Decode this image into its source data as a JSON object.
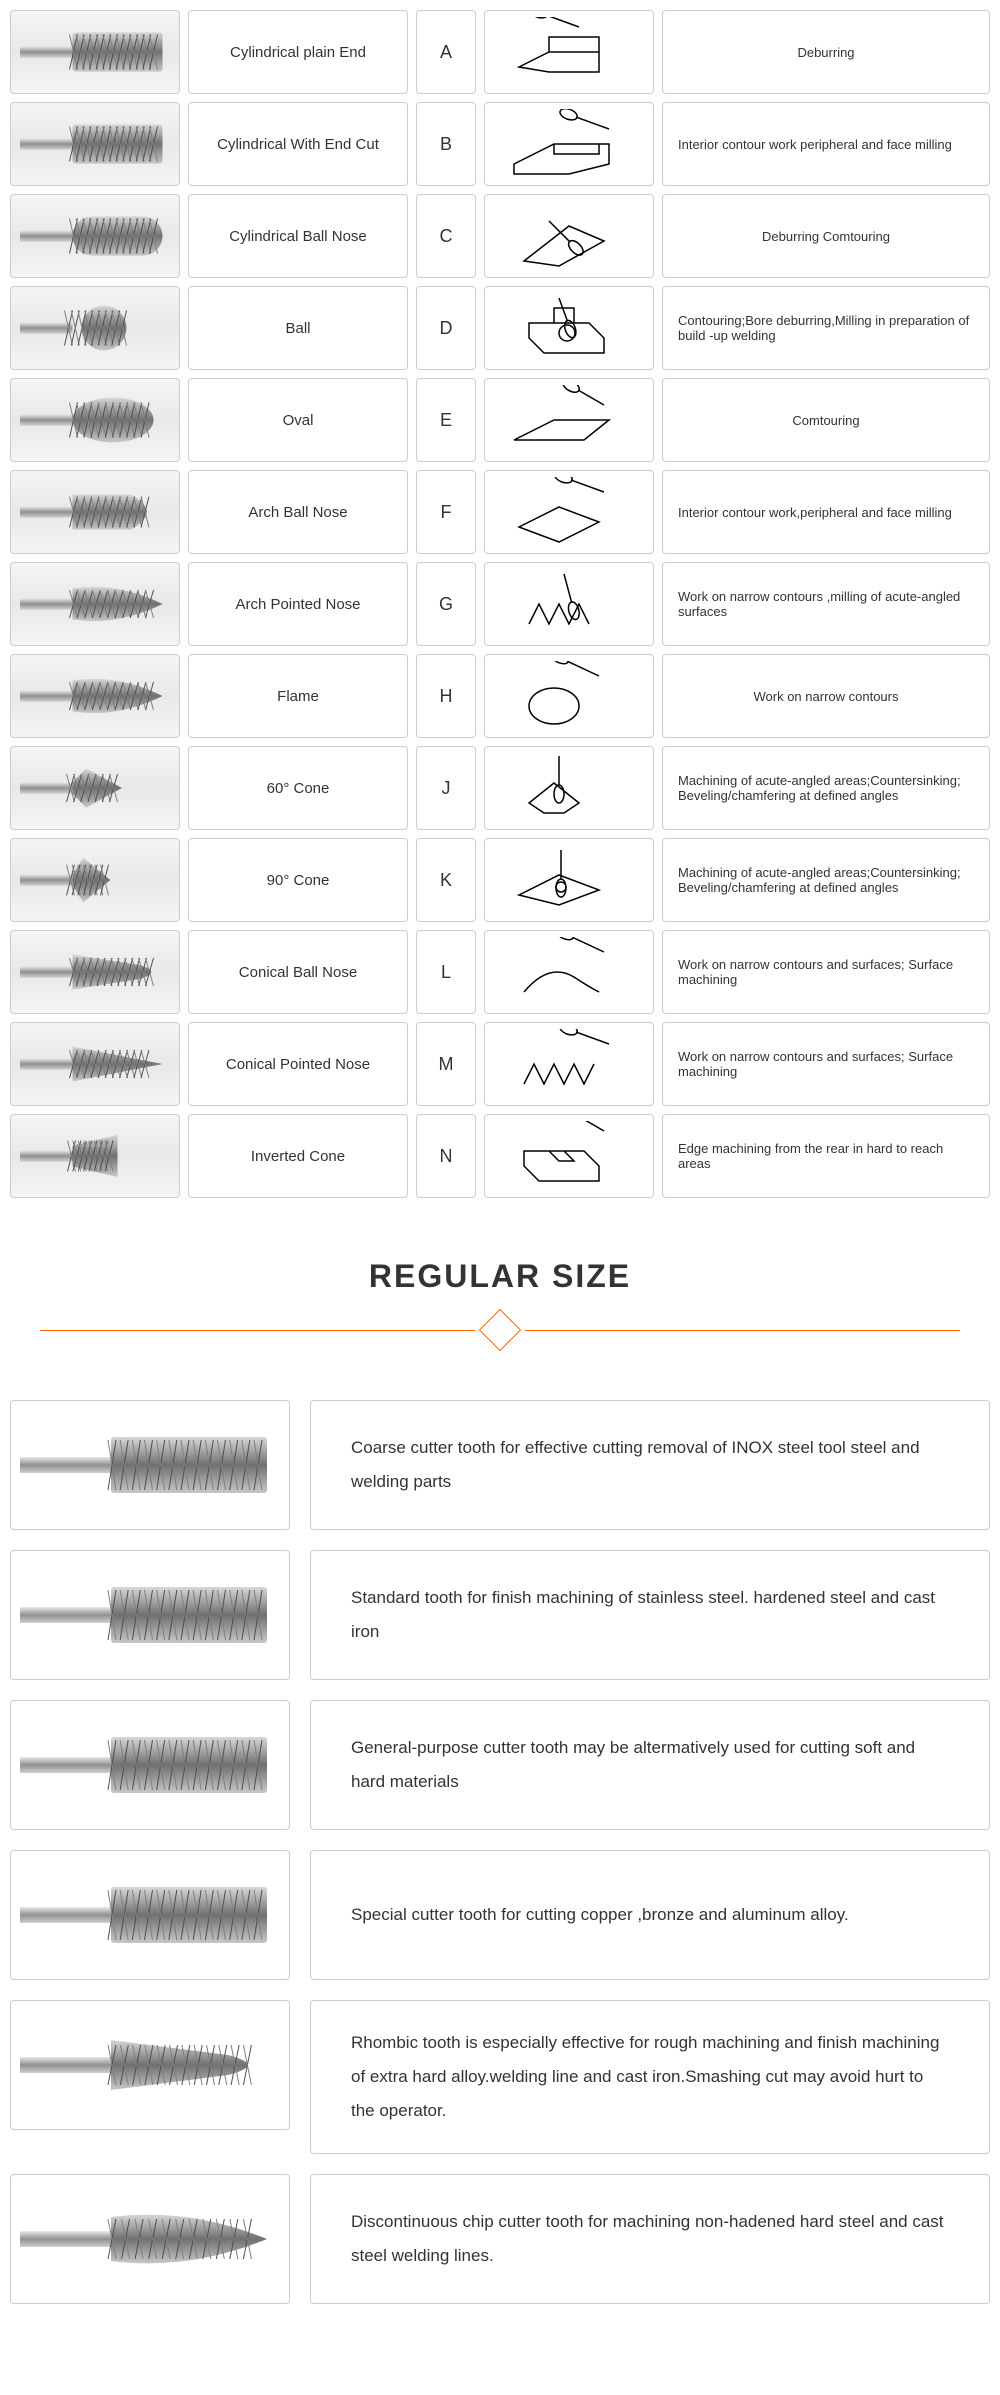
{
  "shapes": [
    {
      "name": "Cylindrical plain End",
      "code": "A",
      "desc": "Deburring",
      "descCenter": true,
      "shape": "cylinder"
    },
    {
      "name": "Cylindrical With End Cut",
      "code": "B",
      "desc": "Interior contour work peripheral and face milling",
      "descCenter": false,
      "shape": "cylinder"
    },
    {
      "name": "Cylindrical Ball Nose",
      "code": "C",
      "desc": "Deburring Comtouring",
      "descCenter": true,
      "shape": "cylinder-ball"
    },
    {
      "name": "Ball",
      "code": "D",
      "desc": "Contouring;Bore deburring,Milling in preparation of build -up welding",
      "descCenter": false,
      "shape": "ball"
    },
    {
      "name": "Oval",
      "code": "E",
      "desc": "Comtouring",
      "descCenter": true,
      "shape": "oval"
    },
    {
      "name": "Arch Ball Nose",
      "code": "F",
      "desc": "Interior contour work,peripheral and face milling",
      "descCenter": false,
      "shape": "arch"
    },
    {
      "name": "Arch Pointed Nose",
      "code": "G",
      "desc": "Work on narrow contours ,milling of acute-angled surfaces",
      "descCenter": false,
      "shape": "arch-point"
    },
    {
      "name": "Flame",
      "code": "H",
      "desc": "Work on narrow contours",
      "descCenter": true,
      "shape": "flame"
    },
    {
      "name": "60° Cone",
      "code": "J",
      "desc": "Machining of acute-angled areas;Countersinking; Beveling/chamfering at defined angles",
      "descCenter": false,
      "shape": "cone60"
    },
    {
      "name": "90° Cone",
      "code": "K",
      "desc": "Machining of acute-angled areas;Countersinking; Beveling/chamfering at defined angles",
      "descCenter": false,
      "shape": "cone90"
    },
    {
      "name": "Conical Ball Nose",
      "code": "L",
      "desc": "Work on narrow contours and surfaces; Surface machining",
      "descCenter": false,
      "shape": "conical-ball"
    },
    {
      "name": "Conical Pointed Nose",
      "code": "M",
      "desc": "Work on narrow contours and surfaces; Surface machining",
      "descCenter": false,
      "shape": "conical-point"
    },
    {
      "name": "Inverted Cone",
      "code": "N",
      "desc": "Edge machining from the rear in hard to reach areas",
      "descCenter": false,
      "shape": "inverted"
    }
  ],
  "sectionTitle": "REGULAR SIZE",
  "regular": [
    {
      "desc": "Coarse cutter tooth for effective cutting removal of INOX steel tool steel and welding parts",
      "shape": "cylinder"
    },
    {
      "desc": "Standard tooth for finish machining of stainless steel. hardened steel and cast iron",
      "shape": "cylinder"
    },
    {
      "desc": "General-purpose cutter tooth may be altermatively used for cutting soft and hard materials",
      "shape": "cylinder"
    },
    {
      "desc": "Special cutter tooth for cutting copper ,bronze and aluminum alloy.",
      "shape": "cylinder"
    },
    {
      "desc": "Rhombic tooth is especially effective for rough machining and finish machining of extra hard alloy.welding line and cast iron.Smashing cut may avoid hurt to the operator.",
      "shape": "conical-ball"
    },
    {
      "desc": "Discontinuous chip cutter tooth for machining non-hadened hard steel and cast steel welding lines.",
      "shape": "arch-point"
    }
  ],
  "colors": {
    "border": "#cccccc",
    "text": "#333333",
    "accent": "#ff6600",
    "burrDark": "#606060",
    "burrLight": "#c0c0c0",
    "shank": "#b0b0b0"
  }
}
